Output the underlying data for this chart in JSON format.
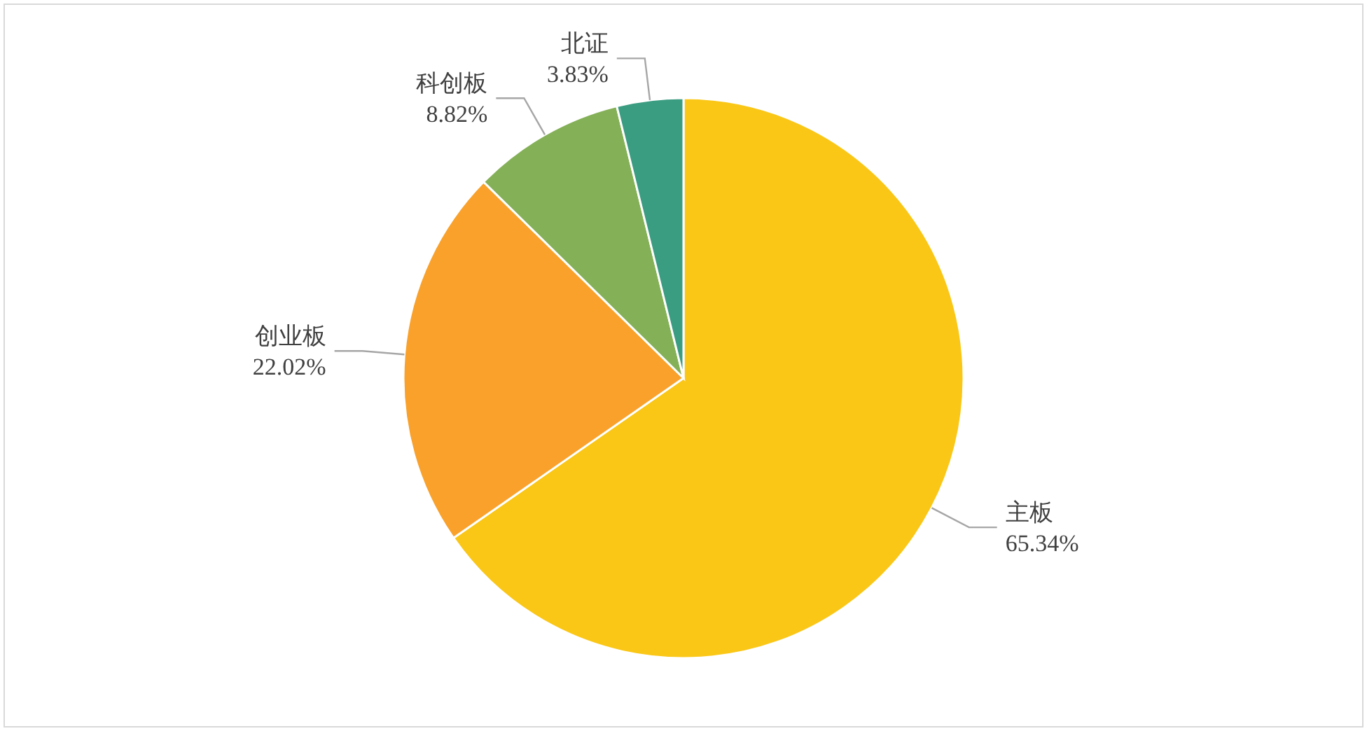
{
  "chart_data": {
    "type": "pie",
    "categories": [
      "主板",
      "创业板",
      "科创板",
      "北证"
    ],
    "values": [
      65.34,
      22.02,
      8.82,
      3.83
    ],
    "colors": [
      "#fac717",
      "#f9a12a",
      "#84b057",
      "#3a9c80"
    ],
    "value_labels": [
      "65.34%",
      "22.02%",
      "8.82%",
      "3.83%"
    ]
  }
}
